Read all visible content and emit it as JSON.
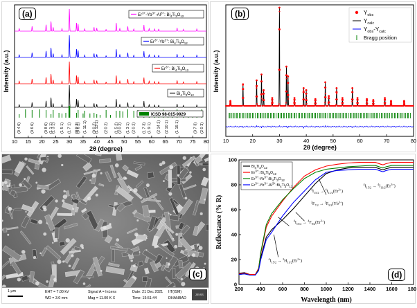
{
  "panel_labels": {
    "a": "(a)",
    "b": "(b)",
    "c": "(c)",
    "d": "(d)"
  },
  "colors": {
    "magenta": "#ff00ff",
    "blue": "#0000ff",
    "red": "#ff0000",
    "black": "#000000",
    "green": "#008000",
    "darkred": "#8b0000"
  },
  "chart_data": [
    {
      "id": "a",
      "type": "line",
      "title": "",
      "xlabel": "2θ (degree)",
      "ylabel": "Intensity (a.u.)",
      "xlim": [
        10,
        80
      ],
      "xticks": [
        10,
        15,
        20,
        25,
        30,
        35,
        40,
        45,
        50,
        55,
        60,
        65,
        70,
        75,
        80
      ],
      "series": [
        {
          "name": "Er3+-Yb3+-Al3+: Bi4Ti3O12",
          "label_html": [
            "Er",
            "3+",
            "-Yb",
            "3+",
            "-Al",
            "3+",
            ": Bi",
            "4",
            "Ti",
            "3",
            "O",
            "12"
          ],
          "color": "#ff00ff"
        },
        {
          "name": "Er3+-Yb3+: Bi4Ti3O12",
          "label_html": [
            "Er",
            "3+",
            "-Yb",
            "3+",
            ": Bi",
            "4",
            "Ti",
            "3",
            "O",
            "12"
          ],
          "color": "#0000ff"
        },
        {
          "name": "Er3+: Bi4Ti3O12",
          "label_html": [
            "Er",
            "3+",
            ": Bi",
            "4",
            "Ti",
            "3",
            "O",
            "12"
          ],
          "color": "#ff0000"
        },
        {
          "name": "Bi4Ti3O12",
          "label_html": [
            "Bi",
            "4",
            "Ti",
            "3",
            "O",
            "12"
          ],
          "color": "#000000"
        }
      ],
      "peaks": [
        {
          "x": 11.7,
          "h": 0.12
        },
        {
          "x": 16.4,
          "h": 0.22
        },
        {
          "x": 21.5,
          "h": 0.3
        },
        {
          "x": 23.3,
          "h": 0.45
        },
        {
          "x": 24.1,
          "h": 0.18
        },
        {
          "x": 27.3,
          "h": 0.12
        },
        {
          "x": 30.0,
          "h": 1.0
        },
        {
          "x": 32.6,
          "h": 0.4
        },
        {
          "x": 33.2,
          "h": 0.32
        },
        {
          "x": 35.6,
          "h": 0.1
        },
        {
          "x": 39.0,
          "h": 0.18
        },
        {
          "x": 40.0,
          "h": 0.14
        },
        {
          "x": 43.4,
          "h": 0.08
        },
        {
          "x": 47.1,
          "h": 0.38
        },
        {
          "x": 48.4,
          "h": 0.12
        },
        {
          "x": 51.3,
          "h": 0.22
        },
        {
          "x": 53.5,
          "h": 0.1
        },
        {
          "x": 57.2,
          "h": 0.28
        },
        {
          "x": 59.1,
          "h": 0.12
        },
        {
          "x": 61.1,
          "h": 0.1
        },
        {
          "x": 62.6,
          "h": 0.1
        },
        {
          "x": 69.3,
          "h": 0.15
        },
        {
          "x": 71.6,
          "h": 0.08
        },
        {
          "x": 76.5,
          "h": 0.1
        }
      ],
      "reference": {
        "name": "ICSD 98-015-9929",
        "color": "#008000"
      },
      "hkl": [
        "(0 4 0)",
        "(0 6 0)",
        "(0 8 0)",
        "(1 1 1)",
        "(1 3 1)",
        "(1 5 1)",
        "(1 7 1)",
        "(0 0 2)",
        "(0 6 2)",
        "(1 11 1)",
        "(0 0 2)",
        "(1 13 1)",
        "(2 0 2)",
        "(1 5 2)",
        "(2 0 2)",
        "(1 3 1)",
        "(2 0 2)",
        "(1 7 3)",
        "(1 9 1)",
        "(2 14 2)",
        "(2 10 1)",
        "(1 15 1)",
        "(3 7 3)",
        "(2 0 3)"
      ],
      "hkl_x": [
        11.7,
        16.4,
        21.5,
        23.3,
        24.1,
        27.3,
        30.0,
        32.6,
        33.2,
        35.6,
        39.0,
        40.0,
        43.4,
        47.1,
        48.4,
        51.3,
        53.5,
        57.2,
        59.1,
        62.6,
        65.5,
        69.3,
        76.0,
        78.3
      ],
      "ref_lines": [
        11.7,
        14.0,
        16.4,
        19.2,
        21.5,
        23.3,
        24.1,
        26.2,
        27.3,
        28.7,
        30.0,
        32.6,
        33.2,
        35.0,
        35.6,
        37.5,
        39.0,
        40.0,
        41.2,
        43.4,
        45.0,
        47.1,
        48.4,
        49.5,
        51.3,
        53.5,
        55.0,
        57.2,
        59.1,
        61.1,
        62.6,
        64.2,
        66.0,
        67.5,
        69.3,
        71.6,
        73.4,
        75.0,
        76.5,
        78.3
      ]
    },
    {
      "id": "b",
      "type": "line",
      "title": "",
      "xlabel": "2θ (degree)",
      "ylabel": "Intensity (a.u.)",
      "xlim": [
        10,
        80
      ],
      "xticks": [
        10,
        20,
        30,
        40,
        50,
        60,
        70,
        80
      ],
      "legend": {
        "obs": {
          "base": "Y",
          "sub": "obs",
          "color": "#ff0000"
        },
        "calc": {
          "base": "Y",
          "sub": "calc",
          "color": "#000000"
        },
        "diff": {
          "base": "Y",
          "sub1": "obs",
          "mid": "-Y",
          "sub2": "calc",
          "color": "#0000ff"
        },
        "bragg": {
          "label": "Bragg position",
          "color": "#008000"
        }
      },
      "peaks": [
        {
          "x": 11.7,
          "h": 0.05
        },
        {
          "x": 16.4,
          "h": 0.22
        },
        {
          "x": 21.5,
          "h": 0.26
        },
        {
          "x": 23.3,
          "h": 0.32
        },
        {
          "x": 24.1,
          "h": 0.16
        },
        {
          "x": 27.3,
          "h": 0.08
        },
        {
          "x": 30.0,
          "h": 1.0
        },
        {
          "x": 32.6,
          "h": 0.4
        },
        {
          "x": 33.2,
          "h": 0.3
        },
        {
          "x": 35.6,
          "h": 0.08
        },
        {
          "x": 39.0,
          "h": 0.18
        },
        {
          "x": 40.0,
          "h": 0.16
        },
        {
          "x": 43.4,
          "h": 0.07
        },
        {
          "x": 47.1,
          "h": 0.24
        },
        {
          "x": 48.4,
          "h": 0.1
        },
        {
          "x": 51.3,
          "h": 0.18
        },
        {
          "x": 53.5,
          "h": 0.08
        },
        {
          "x": 57.2,
          "h": 0.18
        },
        {
          "x": 59.1,
          "h": 0.08
        },
        {
          "x": 62.6,
          "h": 0.07
        },
        {
          "x": 65.0,
          "h": 0.06
        },
        {
          "x": 69.3,
          "h": 0.08
        },
        {
          "x": 71.6,
          "h": 0.05
        },
        {
          "x": 76.5,
          "h": 0.05
        }
      ]
    },
    {
      "id": "d",
      "type": "line",
      "title": "",
      "xlabel": "Wavelength (nm)",
      "ylabel": "Reflectance (% R)",
      "xlim": [
        200,
        1800
      ],
      "ylim": [
        0,
        100
      ],
      "xticks": [
        200,
        400,
        600,
        800,
        1000,
        1200,
        1400,
        1600,
        1800
      ],
      "yticks": [
        0,
        20,
        40,
        60,
        80,
        100
      ],
      "series": [
        {
          "name": "Bi4Ti3O12",
          "label_html": [
            "Bi",
            "4",
            "Ti",
            "3",
            "O",
            "12"
          ],
          "color": "#000000",
          "x": [
            200,
            250,
            300,
            350,
            380,
            400,
            450,
            500,
            600,
            700,
            800,
            900,
            1000,
            1100,
            1200,
            1300,
            1400,
            1450,
            1500,
            1520,
            1550,
            1600,
            1700,
            1800
          ],
          "y": [
            9,
            9.5,
            8,
            8,
            12,
            22,
            38,
            44,
            52,
            61,
            71,
            81,
            89,
            92,
            93.5,
            94,
            94,
            94,
            92.5,
            92,
            93,
            94,
            94,
            94
          ]
        },
        {
          "name": "Er3+: Bi4Ti3O12",
          "label_html": [
            "Er",
            "3+",
            ": Bi",
            "4",
            "Ti",
            "3",
            "O",
            "12"
          ],
          "color": "#ff0000",
          "x": [
            200,
            250,
            300,
            350,
            380,
            400,
            450,
            500,
            600,
            700,
            800,
            900,
            1000,
            1100,
            1200,
            1300,
            1400,
            1450,
            1500,
            1520,
            1550,
            1600,
            1700,
            1800
          ],
          "y": [
            8.5,
            9,
            8,
            8,
            13,
            25,
            46,
            55,
            67,
            78,
            87,
            92,
            95,
            96.5,
            97.5,
            98,
            98,
            98,
            96.5,
            96,
            97,
            98,
            98,
            98
          ]
        },
        {
          "name": "Er3+-Yb3+: Bi4Ti3O12",
          "label_html": [
            "Er",
            "3+",
            "-Yb",
            "3+",
            ":Bi",
            "4",
            "Ti",
            "3",
            "O",
            "12"
          ],
          "color": "#008000",
          "x": [
            200,
            250,
            300,
            350,
            380,
            400,
            450,
            500,
            600,
            700,
            800,
            900,
            1000,
            1100,
            1200,
            1300,
            1400,
            1450,
            1500,
            1520,
            1550,
            1600,
            1700,
            1800
          ],
          "y": [
            8,
            8.5,
            7.5,
            7.5,
            12,
            26,
            48,
            57,
            68,
            77,
            85,
            90,
            92.5,
            93.5,
            94.5,
            95,
            95.5,
            95.5,
            94,
            93.5,
            94.5,
            95.5,
            95.5,
            95.5
          ]
        },
        {
          "name": "Er3+-Yb3+-Al3+: Bi4Ti3O12",
          "label_html": [
            "Er",
            "3+",
            "-Yb",
            "3+",
            "-Al",
            "3+",
            ":Bi",
            "4",
            "Ti",
            "3",
            "O",
            "12"
          ],
          "color": "#0000ff",
          "x": [
            200,
            250,
            300,
            350,
            380,
            400,
            450,
            500,
            600,
            700,
            800,
            900,
            1000,
            1100,
            1200,
            1300,
            1400,
            1450,
            1500,
            1520,
            1550,
            1600,
            1700,
            1800
          ],
          "y": [
            8,
            8.5,
            7.5,
            7.5,
            11,
            20,
            36,
            42,
            55,
            66,
            75,
            84,
            90,
            91.5,
            92,
            92.5,
            92.5,
            92.5,
            91,
            90.5,
            91.5,
            92.5,
            92.5,
            92.5
          ]
        }
      ],
      "annotations": [
        {
          "parts": [
            "I",
            "15/2",
            "→",
            "I",
            "13/2",
            "(Er",
            "3+",
            ")"
          ],
          "ss": [
            "4",
            "4"
          ]
        },
        {
          "parts": [
            "I",
            "15/2",
            "→",
            "I",
            "11/2",
            "(Er",
            "3+",
            ")"
          ],
          "ss": [
            "4",
            "4"
          ]
        },
        {
          "parts": [
            "F",
            "7/2",
            "→",
            "F",
            "5/2",
            "(Yb",
            "3+",
            ")"
          ],
          "ss": [
            "2",
            "2"
          ]
        },
        {
          "parts": [
            "I",
            "15/2",
            "→",
            "F",
            "9/2",
            "(Er",
            "3+",
            ")"
          ],
          "ss": [
            "4",
            "4"
          ]
        },
        {
          "parts": [
            "I",
            "15/2",
            "→",
            "H",
            "11/2",
            "(Er",
            "3+",
            ")"
          ],
          "ss": [
            "4",
            "2"
          ]
        }
      ]
    }
  ],
  "sem_image": {
    "footer": {
      "scale_bar": "1 μm",
      "eht": "EHT = 7.00 kV",
      "wd": "WD = 3.0 mm",
      "signal": "Signal A = InLens",
      "mag": "Mag = 11.00 K X",
      "date": "Date: 21 Dec 2021",
      "time": "Time: 15:51:44",
      "inst1": "IIT(ISM)",
      "inst2": "DHANBAD",
      "logo": "ZEISS"
    }
  }
}
